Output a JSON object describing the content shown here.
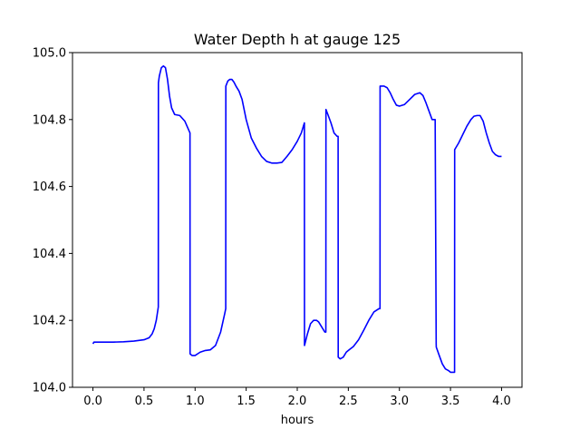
{
  "chart_data": {
    "type": "line",
    "title": "Water Depth h at gauge 125",
    "xlabel": "hours",
    "ylabel": "",
    "xlim": [
      -0.2,
      4.2
    ],
    "ylim": [
      104.0,
      105.0
    ],
    "grid": false,
    "legend": "none",
    "x_ticks": [
      0.0,
      0.5,
      1.0,
      1.5,
      2.0,
      2.5,
      3.0,
      3.5,
      4.0
    ],
    "x_tick_labels": [
      "0.0",
      "0.5",
      "1.0",
      "1.5",
      "2.0",
      "2.5",
      "3.0",
      "3.5",
      "4.0"
    ],
    "y_ticks": [
      104.0,
      104.2,
      104.4,
      104.6,
      104.8,
      105.0
    ],
    "y_tick_labels": [
      "104.0",
      "104.2",
      "104.4",
      "104.6",
      "104.8",
      "105.0"
    ],
    "series": [
      {
        "color": "#0000ff",
        "x": [
          0.0,
          0.01,
          0.1,
          0.2,
          0.3,
          0.4,
          0.5,
          0.55,
          0.58,
          0.6,
          0.62,
          0.64,
          0.641,
          0.65,
          0.67,
          0.69,
          0.71,
          0.73,
          0.75,
          0.77,
          0.8,
          0.85,
          0.9,
          0.95,
          0.951,
          0.97,
          1.0,
          1.05,
          1.1,
          1.15,
          1.2,
          1.25,
          1.29,
          1.3,
          1.301,
          1.32,
          1.34,
          1.36,
          1.38,
          1.4,
          1.43,
          1.46,
          1.5,
          1.55,
          1.6,
          1.65,
          1.7,
          1.75,
          1.8,
          1.85,
          1.9,
          1.95,
          2.0,
          2.04,
          2.07,
          2.071,
          2.1,
          2.13,
          2.16,
          2.19,
          2.21,
          2.24,
          2.27,
          2.28,
          2.281,
          2.3,
          2.33,
          2.36,
          2.39,
          2.4,
          2.401,
          2.42,
          2.45,
          2.48,
          2.5,
          2.55,
          2.6,
          2.65,
          2.7,
          2.75,
          2.8,
          2.81,
          2.811,
          2.85,
          2.88,
          2.91,
          2.94,
          2.97,
          3.0,
          3.05,
          3.1,
          3.15,
          3.2,
          3.23,
          3.26,
          3.29,
          3.32,
          3.35,
          3.36,
          3.361,
          3.39,
          3.42,
          3.45,
          3.48,
          3.5,
          3.53,
          3.54,
          3.541,
          3.58,
          3.62,
          3.66,
          3.7,
          3.73,
          3.76,
          3.79,
          3.82,
          3.85,
          3.88,
          3.91,
          3.94,
          3.97,
          4.0
        ],
        "y": [
          104.13,
          104.135,
          104.135,
          104.135,
          104.136,
          104.138,
          104.142,
          104.148,
          104.16,
          104.175,
          104.2,
          104.24,
          104.91,
          104.93,
          104.955,
          104.96,
          104.955,
          104.92,
          104.87,
          104.835,
          104.815,
          104.812,
          104.795,
          104.76,
          104.1,
          104.095,
          104.095,
          104.105,
          104.11,
          104.112,
          104.125,
          104.165,
          104.22,
          104.235,
          104.9,
          104.915,
          104.92,
          104.92,
          104.912,
          104.9,
          104.885,
          104.86,
          104.8,
          104.745,
          104.715,
          104.69,
          104.675,
          104.67,
          104.67,
          104.672,
          104.69,
          104.71,
          104.735,
          104.76,
          104.79,
          104.125,
          104.16,
          104.19,
          104.2,
          104.2,
          104.195,
          104.18,
          104.165,
          104.165,
          104.83,
          104.815,
          104.79,
          104.76,
          104.75,
          104.75,
          104.09,
          104.085,
          104.09,
          104.105,
          104.11,
          104.122,
          104.142,
          104.17,
          104.2,
          104.225,
          104.235,
          104.235,
          104.9,
          104.9,
          104.895,
          104.88,
          104.86,
          104.843,
          104.84,
          104.845,
          104.86,
          104.875,
          104.88,
          104.872,
          104.85,
          104.825,
          104.8,
          104.8,
          104.13,
          104.12,
          104.095,
          104.07,
          104.055,
          104.05,
          104.045,
          104.045,
          104.045,
          104.71,
          104.73,
          104.755,
          104.78,
          104.8,
          104.81,
          104.812,
          104.812,
          104.795,
          104.76,
          104.73,
          104.705,
          104.695,
          104.69,
          104.69
        ]
      }
    ]
  }
}
